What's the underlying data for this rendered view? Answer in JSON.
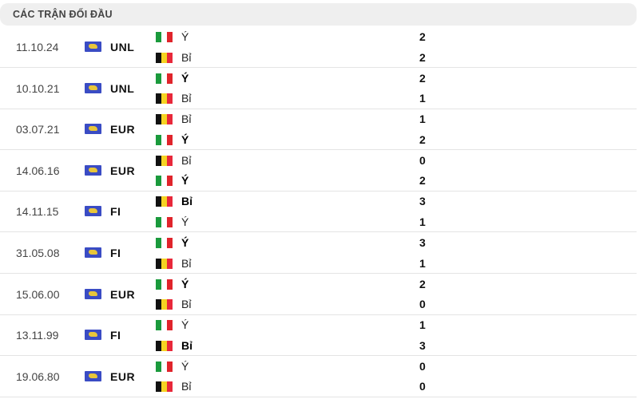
{
  "header": {
    "title": "CÁC TRẬN ĐỐI ĐẦU"
  },
  "colors": {
    "italy": [
      "#1a9a3c",
      "#ffffff",
      "#e0242b"
    ],
    "belgium": [
      "#111111",
      "#f5d322",
      "#e8283a"
    ]
  },
  "matches": [
    {
      "date": "11.10.24",
      "competition": "UNL",
      "teams": [
        {
          "name": "Ý",
          "flag": "italy",
          "score": "2",
          "winner": false
        },
        {
          "name": "Bỉ",
          "flag": "belgium",
          "score": "2",
          "winner": false
        }
      ]
    },
    {
      "date": "10.10.21",
      "competition": "UNL",
      "teams": [
        {
          "name": "Ý",
          "flag": "italy",
          "score": "2",
          "winner": true
        },
        {
          "name": "Bỉ",
          "flag": "belgium",
          "score": "1",
          "winner": false
        }
      ]
    },
    {
      "date": "03.07.21",
      "competition": "EUR",
      "teams": [
        {
          "name": "Bỉ",
          "flag": "belgium",
          "score": "1",
          "winner": false
        },
        {
          "name": "Ý",
          "flag": "italy",
          "score": "2",
          "winner": true
        }
      ]
    },
    {
      "date": "14.06.16",
      "competition": "EUR",
      "teams": [
        {
          "name": "Bỉ",
          "flag": "belgium",
          "score": "0",
          "winner": false
        },
        {
          "name": "Ý",
          "flag": "italy",
          "score": "2",
          "winner": true
        }
      ]
    },
    {
      "date": "14.11.15",
      "competition": "FI",
      "teams": [
        {
          "name": "Bỉ",
          "flag": "belgium",
          "score": "3",
          "winner": true
        },
        {
          "name": "Ý",
          "flag": "italy",
          "score": "1",
          "winner": false
        }
      ]
    },
    {
      "date": "31.05.08",
      "competition": "FI",
      "teams": [
        {
          "name": "Ý",
          "flag": "italy",
          "score": "3",
          "winner": true
        },
        {
          "name": "Bỉ",
          "flag": "belgium",
          "score": "1",
          "winner": false
        }
      ]
    },
    {
      "date": "15.06.00",
      "competition": "EUR",
      "teams": [
        {
          "name": "Ý",
          "flag": "italy",
          "score": "2",
          "winner": true
        },
        {
          "name": "Bỉ",
          "flag": "belgium",
          "score": "0",
          "winner": false
        }
      ]
    },
    {
      "date": "13.11.99",
      "competition": "FI",
      "teams": [
        {
          "name": "Ý",
          "flag": "italy",
          "score": "1",
          "winner": false
        },
        {
          "name": "Bỉ",
          "flag": "belgium",
          "score": "3",
          "winner": true
        }
      ]
    },
    {
      "date": "19.06.80",
      "competition": "EUR",
      "teams": [
        {
          "name": "Ý",
          "flag": "italy",
          "score": "0",
          "winner": false
        },
        {
          "name": "Bỉ",
          "flag": "belgium",
          "score": "0",
          "winner": false
        }
      ]
    }
  ]
}
